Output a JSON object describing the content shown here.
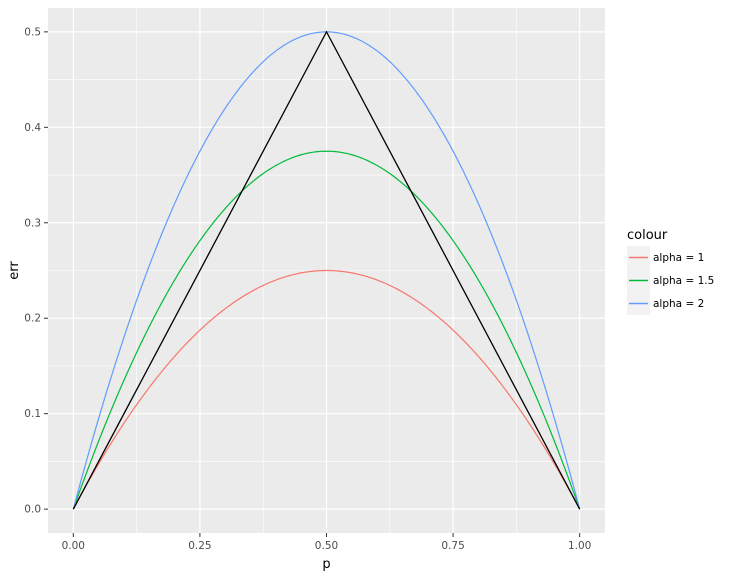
{
  "chart_data": {
    "type": "line",
    "xlabel": "p",
    "ylabel": "err",
    "xlim": [
      -0.05,
      1.05
    ],
    "ylim": [
      -0.025,
      0.525
    ],
    "x_ticks": [
      0.0,
      0.25,
      0.5,
      0.75,
      1.0
    ],
    "x_tick_labels": [
      "0.00",
      "0.25",
      "0.50",
      "0.75",
      "1.00"
    ],
    "y_ticks": [
      0.0,
      0.1,
      0.2,
      0.3,
      0.4,
      0.5
    ],
    "y_tick_labels": [
      "0.0",
      "0.1",
      "0.2",
      "0.3",
      "0.4",
      "0.5"
    ],
    "grid": true,
    "legend": {
      "title": "colour",
      "placement": "right"
    },
    "x": [
      0.0,
      0.05,
      0.1,
      0.15,
      0.2,
      0.25,
      0.3,
      0.35,
      0.4,
      0.45,
      0.5,
      0.55,
      0.6,
      0.65,
      0.7,
      0.75,
      0.8,
      0.85,
      0.9,
      0.95,
      1.0
    ],
    "series": [
      {
        "name": "alpha = 1",
        "color": "#F8766D",
        "values": [
          0.0,
          0.0475,
          0.09,
          0.1275,
          0.16,
          0.1875,
          0.21,
          0.2275,
          0.24,
          0.2475,
          0.25,
          0.2475,
          0.24,
          0.2275,
          0.21,
          0.1875,
          0.16,
          0.1275,
          0.09,
          0.0475,
          0.0
        ]
      },
      {
        "name": "alpha = 1.5",
        "color": "#00BA38",
        "values": [
          0.0,
          0.07125,
          0.135,
          0.19125,
          0.24,
          0.28125,
          0.315,
          0.34125,
          0.36,
          0.37125,
          0.375,
          0.37125,
          0.36,
          0.34125,
          0.315,
          0.28125,
          0.24,
          0.19125,
          0.135,
          0.07125,
          0.0
        ]
      },
      {
        "name": "alpha = 2",
        "color": "#619CFF",
        "values": [
          0.0,
          0.095,
          0.18,
          0.255,
          0.32,
          0.375,
          0.42,
          0.455,
          0.48,
          0.495,
          0.5,
          0.495,
          0.48,
          0.455,
          0.42,
          0.375,
          0.32,
          0.255,
          0.18,
          0.095,
          0.0
        ]
      }
    ],
    "reference_line": {
      "color": "#000000",
      "x": [
        0.0,
        0.5,
        1.0
      ],
      "values": [
        0.0,
        0.5,
        0.0
      ]
    },
    "colors": {
      "panel_background": "#EBEBEB",
      "grid_major": "#FFFFFF",
      "legend_key_background": "#F2F2F2"
    }
  }
}
